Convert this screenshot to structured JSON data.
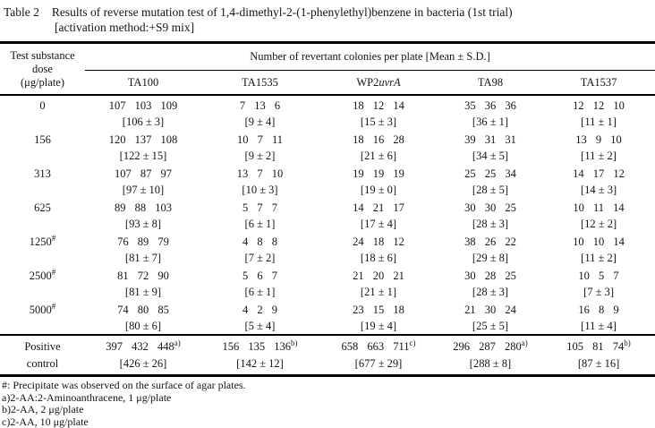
{
  "title": {
    "prefix": "Table 2",
    "line1": "Results of reverse mutation test of 1,4-dimethyl-2-(1-phenylethyl)benzene in bacteria (1st trial)",
    "line2": "[activation method:+S9 mix]"
  },
  "table": {
    "corner": [
      "Test substance",
      "dose",
      "(μg/plate)"
    ],
    "span_header": "Number of revertant colonies per plate [Mean ± S.D.]",
    "strains": [
      {
        "label": "TA100"
      },
      {
        "label": "TA1535"
      },
      {
        "label": "WP2",
        "italic": "uvrA"
      },
      {
        "label": "TA98"
      },
      {
        "label": "TA1537"
      }
    ],
    "rows": [
      {
        "dose": "0",
        "sup": "",
        "cells": [
          {
            "counts": "107 103 109",
            "sup": "",
            "mean": "[106 ± 3]"
          },
          {
            "counts": "7 13 6",
            "sup": "",
            "mean": "[9 ± 4]"
          },
          {
            "counts": "18 12 14",
            "sup": "",
            "mean": "[15 ± 3]"
          },
          {
            "counts": "35 36 36",
            "sup": "",
            "mean": "[36 ± 1]"
          },
          {
            "counts": "12 12 10",
            "sup": "",
            "mean": "[11 ± 1]"
          }
        ]
      },
      {
        "dose": "156",
        "sup": "",
        "cells": [
          {
            "counts": "120 137 108",
            "sup": "",
            "mean": "[122 ± 15]"
          },
          {
            "counts": "10 7 11",
            "sup": "",
            "mean": "[9 ± 2]"
          },
          {
            "counts": "18 16 28",
            "sup": "",
            "mean": "[21 ± 6]"
          },
          {
            "counts": "39 31 31",
            "sup": "",
            "mean": "[34 ± 5]"
          },
          {
            "counts": "13 9 10",
            "sup": "",
            "mean": "[11 ± 2]"
          }
        ]
      },
      {
        "dose": "313",
        "sup": "",
        "cells": [
          {
            "counts": "107 87 97",
            "sup": "",
            "mean": "[97 ± 10]"
          },
          {
            "counts": "13 7 10",
            "sup": "",
            "mean": "[10 ± 3]"
          },
          {
            "counts": "19 19 19",
            "sup": "",
            "mean": "[19 ± 0]"
          },
          {
            "counts": "25 25 34",
            "sup": "",
            "mean": "[28 ± 5]"
          },
          {
            "counts": "14 17 12",
            "sup": "",
            "mean": "[14 ± 3]"
          }
        ]
      },
      {
        "dose": "625",
        "sup": "",
        "cells": [
          {
            "counts": "89 88 103",
            "sup": "",
            "mean": "[93 ± 8]"
          },
          {
            "counts": "5 7 7",
            "sup": "",
            "mean": "[6 ± 1]"
          },
          {
            "counts": "14 21 17",
            "sup": "",
            "mean": "[17 ± 4]"
          },
          {
            "counts": "30 30 25",
            "sup": "",
            "mean": "[28 ± 3]"
          },
          {
            "counts": "10 11 14",
            "sup": "",
            "mean": "[12 ± 2]"
          }
        ]
      },
      {
        "dose": "1250",
        "sup": "#",
        "cells": [
          {
            "counts": "76 89 79",
            "sup": "",
            "mean": "[81 ± 7]"
          },
          {
            "counts": "4 8 8",
            "sup": "",
            "mean": "[7 ± 2]"
          },
          {
            "counts": "24 18 12",
            "sup": "",
            "mean": "[18 ± 6]"
          },
          {
            "counts": "38 26 22",
            "sup": "",
            "mean": "[29 ± 8]"
          },
          {
            "counts": "10 10 14",
            "sup": "",
            "mean": "[11 ± 2]"
          }
        ]
      },
      {
        "dose": "2500",
        "sup": "#",
        "cells": [
          {
            "counts": "81 72 90",
            "sup": "",
            "mean": "[81 ± 9]"
          },
          {
            "counts": "5 6 7",
            "sup": "",
            "mean": "[6 ± 1]"
          },
          {
            "counts": "21 20 21",
            "sup": "",
            "mean": "[21 ± 1]"
          },
          {
            "counts": "30 28 25",
            "sup": "",
            "mean": "[28 ± 3]"
          },
          {
            "counts": "10 5 7",
            "sup": "",
            "mean": "[7 ± 3]"
          }
        ]
      },
      {
        "dose": "5000",
        "sup": "#",
        "cells": [
          {
            "counts": "74 80 85",
            "sup": "",
            "mean": "[80 ± 6]"
          },
          {
            "counts": "4 2 9",
            "sup": "",
            "mean": "[5 ± 4]"
          },
          {
            "counts": "23 15 18",
            "sup": "",
            "mean": "[19 ± 4]"
          },
          {
            "counts": "21 30 24",
            "sup": "",
            "mean": "[25 ± 5]"
          },
          {
            "counts": "16 8 9",
            "sup": "",
            "mean": "[11 ± 4]"
          }
        ]
      }
    ],
    "positive_control": {
      "label_line1": "Positive",
      "label_line2": "control",
      "cells": [
        {
          "counts": "397 432 448",
          "sup": "a)",
          "mean": "[426 ± 26]"
        },
        {
          "counts": "156 135 136",
          "sup": "b)",
          "mean": "[142 ± 12]"
        },
        {
          "counts": "658 663 711",
          "sup": "c)",
          "mean": "[677 ± 29]"
        },
        {
          "counts": "296 287 280",
          "sup": "a)",
          "mean": "[288 ± 8]"
        },
        {
          "counts": "105 81 74",
          "sup": "b)",
          "mean": "[87 ± 16]"
        }
      ]
    }
  },
  "footnotes": [
    "#: Precipitate was observed on the surface of agar plates.",
    "a)2-AA:2-Aminoanthracene, 1 μg/plate",
    "b)2-AA, 2 μg/plate",
    "c)2-AA, 10 μg/plate"
  ],
  "colors": {
    "text": "#141414",
    "background": "#ffffff",
    "rule": "#000000"
  }
}
